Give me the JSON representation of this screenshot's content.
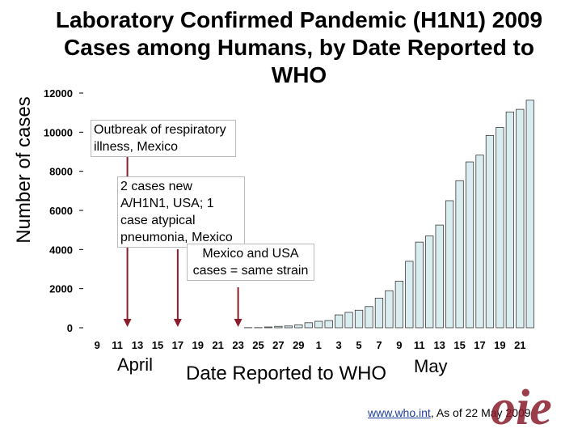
{
  "title": "Laboratory Confirmed Pandemic (H1N1) 2009 Cases among Humans, by Date Reported to WHO",
  "ylabel": "Number of cases",
  "xlabel": "Date Reported to WHO",
  "months": {
    "april": "April",
    "may": "May"
  },
  "annotations": {
    "a1": "Outbreak of respiratory illness, Mexico",
    "a2": "2 cases new A/H1N1, USA; 1 case atypical pneumonia, Mexico",
    "a3": "Mexico and USA cases = same strain"
  },
  "source": {
    "link": "www.who.int",
    "text": ", As of 22 May 2009"
  },
  "logo": {
    "text": "oie",
    "color": "#8a1c2b"
  },
  "colors": {
    "bar_fill": "#d9ecef",
    "bar_stroke": "#3a3a3a",
    "arrow": "#8a1c2b"
  },
  "chart_data": {
    "type": "bar",
    "title": "Laboratory Confirmed Pandemic (H1N1) 2009 Cases among Humans, by Date Reported to WHO",
    "xlabel": "Date Reported to WHO",
    "ylabel": "Number of cases",
    "ylim": [
      0,
      12000
    ],
    "yticks": [
      0,
      2000,
      4000,
      6000,
      8000,
      10000,
      12000
    ],
    "grid": false,
    "legend": "none",
    "categories": [
      "9",
      "10",
      "11",
      "12",
      "13",
      "14",
      "15",
      "16",
      "17",
      "18",
      "19",
      "20",
      "21",
      "22",
      "23",
      "24",
      "25",
      "26",
      "27",
      "28",
      "29",
      "30",
      "1",
      "2",
      "3",
      "4",
      "5",
      "6",
      "7",
      "8",
      "9",
      "10",
      "11",
      "12",
      "13",
      "14",
      "15",
      "16",
      "17",
      "18",
      "19",
      "20",
      "21",
      "22"
    ],
    "tick_labels": [
      "9",
      "11",
      "13",
      "15",
      "17",
      "19",
      "21",
      "23",
      "25",
      "27",
      "29",
      "1",
      "3",
      "5",
      "7",
      "9",
      "11",
      "13",
      "15",
      "17",
      "19",
      "21"
    ],
    "values": [
      0,
      0,
      0,
      0,
      0,
      0,
      0,
      0,
      0,
      0,
      0,
      0,
      0,
      0,
      0,
      7,
      8,
      40,
      73,
      91,
      148,
      257,
      331,
      367,
      658,
      787,
      898,
      1085,
      1516,
      1893,
      2384,
      3398,
      4379,
      4694,
      5251,
      6497,
      7520,
      8480,
      8829,
      9830,
      10243,
      11034,
      11168,
      11634
    ]
  }
}
